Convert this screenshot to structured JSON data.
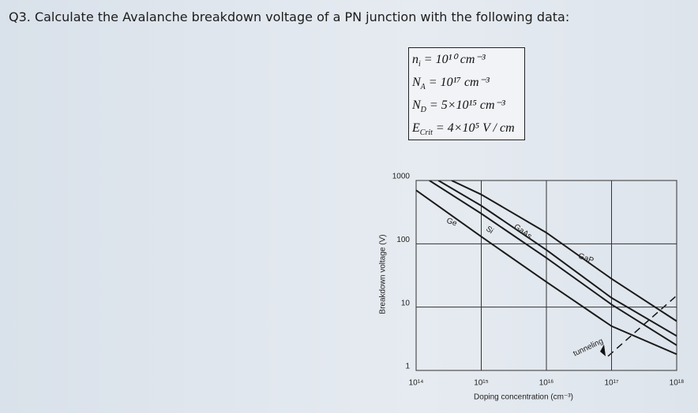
{
  "question": "Q3. Calculate the Avalanche breakdown voltage of a PN junction with the following data:",
  "given": [
    {
      "symbol": "n",
      "sub": "i",
      "rhs": "= 10¹⁰ cm⁻³"
    },
    {
      "symbol": "N",
      "sub": "A",
      "rhs": "= 10¹⁷ cm⁻³"
    },
    {
      "symbol": "N",
      "sub": "D",
      "rhs": "= 5×10¹⁵ cm⁻³"
    },
    {
      "symbol": "E",
      "sub": "Crit",
      "rhs": "= 4×10⁵ V / cm"
    }
  ],
  "chart_data": {
    "type": "line",
    "xlabel": "Doping concentration (cm⁻³)",
    "ylabel": "Breakdown voltage (V)",
    "xscale": "log",
    "yscale": "log",
    "grid": true,
    "xlim": [
      100000000000000.0,
      1e+18
    ],
    "ylim": [
      1,
      1000
    ],
    "xticks": [
      {
        "value": 100000000000000.0,
        "label": "10¹⁴"
      },
      {
        "value": 1000000000000000.0,
        "label": "10¹⁵"
      },
      {
        "value": 1e+16,
        "label": "10¹⁶"
      },
      {
        "value": 1e+17,
        "label": "10¹⁷"
      },
      {
        "value": 1e+18,
        "label": "10¹⁸"
      }
    ],
    "yticks": [
      1,
      10,
      100,
      1000
    ],
    "series": [
      {
        "name": "Ge",
        "color": "#1a1a1a",
        "x": [
          100000000000000.0,
          1000000000000000.0,
          1e+16,
          1e+17,
          1e+18
        ],
        "values": [
          700,
          130,
          25,
          5,
          1.8
        ]
      },
      {
        "name": "Si",
        "color": "#1a1a1a",
        "x": [
          160000000000000.0,
          1000000000000000.0,
          1e+16,
          1e+17,
          1e+18
        ],
        "values": [
          1000,
          300,
          60,
          11,
          2.5
        ]
      },
      {
        "name": "GaAs",
        "color": "#1a1a1a",
        "x": [
          220000000000000.0,
          1000000000000000.0,
          1e+16,
          1e+17,
          1e+18
        ],
        "values": [
          1000,
          400,
          80,
          14,
          3.5
        ]
      },
      {
        "name": "GaP",
        "color": "#1a1a1a",
        "x": [
          350000000000000.0,
          1000000000000000.0,
          1e+16,
          1e+17,
          1e+18
        ],
        "values": [
          1000,
          600,
          150,
          28,
          6
        ]
      }
    ],
    "annotation": "tunneling"
  }
}
